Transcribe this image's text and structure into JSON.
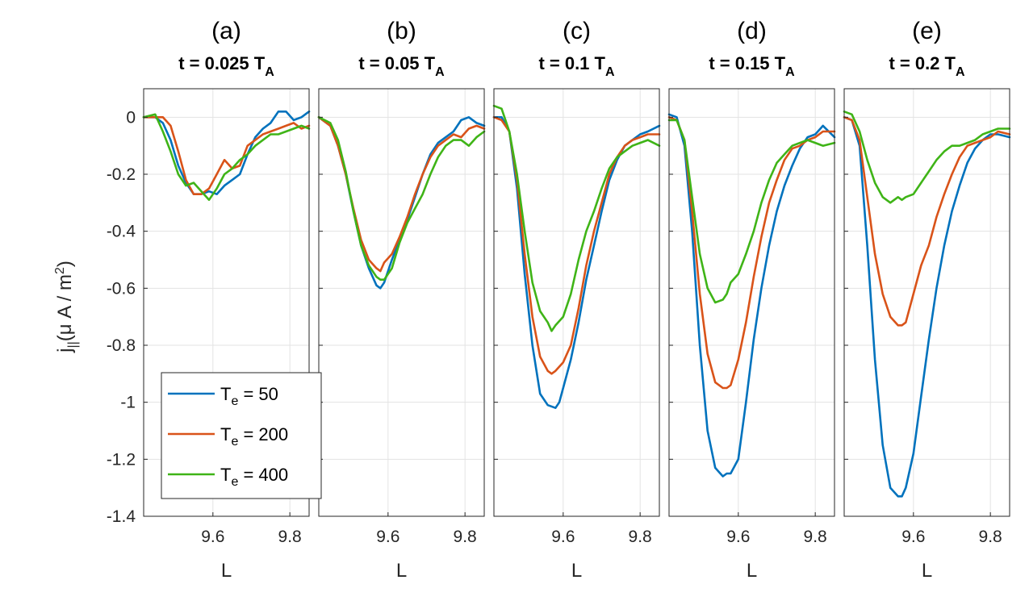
{
  "figure": {
    "y_axis_label": {
      "main": "j",
      "sub": "||",
      "rest": "(μ A / m",
      "sup": "2",
      "close": ")"
    },
    "legend": [
      {
        "prefix": "T",
        "sub": "e",
        "suffix": " = 50",
        "color": "#0072BD"
      },
      {
        "prefix": "T",
        "sub": "e",
        "suffix": " = 200",
        "color": "#D95319"
      },
      {
        "prefix": "T",
        "sub": "e",
        "suffix": " = 400",
        "color": "#3FB417"
      }
    ],
    "legend_location": "bottom-left of panel (a)"
  },
  "chart_data": [
    {
      "type": "line",
      "label": "(a)",
      "title": "t = 0.025 T",
      "title_sub": "A",
      "xlabel": "L",
      "ylabel": "j|| (μ A / m2)",
      "xlim": [
        9.42,
        9.85
      ],
      "ylim": [
        -1.4,
        0.1
      ],
      "xticks": [
        9.6,
        9.8
      ],
      "xtick_labels": [
        "9.6",
        "9.8"
      ],
      "yticks": [
        0,
        -0.2,
        -0.4,
        -0.6,
        -0.8,
        -1,
        -1.2,
        -1.4
      ],
      "ytick_labels": [
        "0",
        "-0.2",
        "-0.4",
        "-0.6",
        "-0.8",
        "-1",
        "-1.2",
        "-1.4"
      ],
      "grid": true,
      "series": [
        {
          "name": "T_e = 50",
          "color": "#0072BD",
          "x": [
            9.42,
            9.45,
            9.47,
            9.49,
            9.51,
            9.53,
            9.55,
            9.57,
            9.59,
            9.61,
            9.63,
            9.65,
            9.67,
            9.69,
            9.71,
            9.73,
            9.75,
            9.77,
            9.79,
            9.81,
            9.83,
            9.85
          ],
          "y": [
            0,
            0,
            -0.02,
            -0.08,
            -0.17,
            -0.23,
            -0.27,
            -0.27,
            -0.26,
            -0.27,
            -0.24,
            -0.22,
            -0.2,
            -0.13,
            -0.07,
            -0.04,
            -0.02,
            0.02,
            0.02,
            -0.01,
            0,
            0.02
          ]
        },
        {
          "name": "T_e = 200",
          "color": "#D95319",
          "x": [
            9.42,
            9.45,
            9.47,
            9.49,
            9.51,
            9.53,
            9.55,
            9.57,
            9.59,
            9.61,
            9.63,
            9.65,
            9.67,
            9.69,
            9.71,
            9.73,
            9.75,
            9.77,
            9.79,
            9.81,
            9.83,
            9.85
          ],
          "y": [
            0,
            0,
            0,
            -0.03,
            -0.12,
            -0.22,
            -0.27,
            -0.27,
            -0.25,
            -0.2,
            -0.15,
            -0.18,
            -0.17,
            -0.1,
            -0.08,
            -0.06,
            -0.05,
            -0.04,
            -0.03,
            -0.02,
            -0.04,
            -0.03
          ]
        },
        {
          "name": "T_e = 400",
          "color": "#3FB417",
          "x": [
            9.42,
            9.45,
            9.47,
            9.49,
            9.51,
            9.53,
            9.55,
            9.57,
            9.59,
            9.61,
            9.63,
            9.65,
            9.67,
            9.69,
            9.71,
            9.73,
            9.75,
            9.77,
            9.79,
            9.81,
            9.83,
            9.85
          ],
          "y": [
            0,
            0.01,
            -0.05,
            -0.12,
            -0.2,
            -0.24,
            -0.23,
            -0.26,
            -0.29,
            -0.25,
            -0.2,
            -0.18,
            -0.15,
            -0.13,
            -0.1,
            -0.08,
            -0.06,
            -0.06,
            -0.05,
            -0.04,
            -0.03,
            -0.04
          ]
        }
      ]
    },
    {
      "type": "line",
      "label": "(b)",
      "title": "t = 0.05 T",
      "title_sub": "A",
      "xlabel": "L",
      "xlim": [
        9.42,
        9.85
      ],
      "ylim": [
        -1.4,
        0.1
      ],
      "xticks": [
        9.6,
        9.8
      ],
      "xtick_labels": [
        "9.6",
        "9.8"
      ],
      "grid": true,
      "series": [
        {
          "name": "T_e = 50",
          "color": "#0072BD",
          "x": [
            9.42,
            9.45,
            9.47,
            9.49,
            9.51,
            9.53,
            9.55,
            9.57,
            9.58,
            9.59,
            9.61,
            9.63,
            9.65,
            9.67,
            9.69,
            9.71,
            9.73,
            9.75,
            9.77,
            9.79,
            9.81,
            9.83,
            9.85
          ],
          "y": [
            0,
            -0.03,
            -0.1,
            -0.2,
            -0.33,
            -0.45,
            -0.53,
            -0.59,
            -0.6,
            -0.58,
            -0.5,
            -0.43,
            -0.36,
            -0.28,
            -0.2,
            -0.13,
            -0.09,
            -0.07,
            -0.05,
            -0.01,
            0,
            -0.02,
            -0.03
          ]
        },
        {
          "name": "T_e = 200",
          "color": "#D95319",
          "x": [
            9.42,
            9.45,
            9.47,
            9.49,
            9.51,
            9.53,
            9.55,
            9.57,
            9.58,
            9.59,
            9.61,
            9.63,
            9.65,
            9.67,
            9.69,
            9.71,
            9.73,
            9.75,
            9.77,
            9.79,
            9.81,
            9.83,
            9.85
          ],
          "y": [
            0,
            -0.03,
            -0.1,
            -0.2,
            -0.32,
            -0.43,
            -0.5,
            -0.53,
            -0.54,
            -0.51,
            -0.48,
            -0.42,
            -0.35,
            -0.27,
            -0.2,
            -0.14,
            -0.1,
            -0.08,
            -0.06,
            -0.07,
            -0.04,
            -0.03,
            -0.04
          ]
        },
        {
          "name": "T_e = 400",
          "color": "#3FB417",
          "x": [
            9.42,
            9.45,
            9.47,
            9.49,
            9.51,
            9.53,
            9.55,
            9.57,
            9.58,
            9.59,
            9.61,
            9.63,
            9.65,
            9.67,
            9.69,
            9.71,
            9.73,
            9.75,
            9.77,
            9.79,
            9.81,
            9.83,
            9.85
          ],
          "y": [
            0,
            -0.02,
            -0.08,
            -0.19,
            -0.33,
            -0.45,
            -0.52,
            -0.56,
            -0.57,
            -0.57,
            -0.53,
            -0.44,
            -0.37,
            -0.32,
            -0.27,
            -0.2,
            -0.14,
            -0.1,
            -0.08,
            -0.08,
            -0.1,
            -0.07,
            -0.05
          ]
        }
      ]
    },
    {
      "type": "line",
      "label": "(c)",
      "title": "t = 0.1 T",
      "title_sub": "A",
      "xlabel": "L",
      "xlim": [
        9.42,
        9.85
      ],
      "ylim": [
        -1.4,
        0.1
      ],
      "xticks": [
        9.6,
        9.8
      ],
      "xtick_labels": [
        "9.6",
        "9.8"
      ],
      "grid": true,
      "series": [
        {
          "name": "T_e = 50",
          "color": "#0072BD",
          "x": [
            9.42,
            9.44,
            9.46,
            9.48,
            9.5,
            9.52,
            9.54,
            9.56,
            9.58,
            9.59,
            9.6,
            9.62,
            9.64,
            9.66,
            9.68,
            9.7,
            9.72,
            9.74,
            9.76,
            9.78,
            9.8,
            9.82,
            9.85
          ],
          "y": [
            0,
            0,
            -0.05,
            -0.25,
            -0.55,
            -0.8,
            -0.97,
            -1.01,
            -1.02,
            -1.0,
            -0.95,
            -0.85,
            -0.72,
            -0.57,
            -0.45,
            -0.33,
            -0.22,
            -0.15,
            -0.1,
            -0.08,
            -0.06,
            -0.05,
            -0.03
          ]
        },
        {
          "name": "T_e = 200",
          "color": "#D95319",
          "x": [
            9.42,
            9.44,
            9.46,
            9.48,
            9.5,
            9.52,
            9.54,
            9.56,
            9.57,
            9.58,
            9.6,
            9.62,
            9.64,
            9.66,
            9.68,
            9.7,
            9.72,
            9.74,
            9.76,
            9.78,
            9.8,
            9.82,
            9.85
          ],
          "y": [
            0,
            -0.01,
            -0.05,
            -0.22,
            -0.48,
            -0.7,
            -0.84,
            -0.89,
            -0.9,
            -0.89,
            -0.86,
            -0.8,
            -0.67,
            -0.52,
            -0.4,
            -0.3,
            -0.2,
            -0.14,
            -0.1,
            -0.08,
            -0.07,
            -0.06,
            -0.06
          ]
        },
        {
          "name": "T_e = 400",
          "color": "#3FB417",
          "x": [
            9.42,
            9.44,
            9.46,
            9.48,
            9.5,
            9.52,
            9.54,
            9.56,
            9.57,
            9.58,
            9.6,
            9.62,
            9.64,
            9.66,
            9.68,
            9.7,
            9.72,
            9.74,
            9.76,
            9.78,
            9.8,
            9.82,
            9.85
          ],
          "y": [
            0.04,
            0.03,
            -0.05,
            -0.2,
            -0.4,
            -0.58,
            -0.68,
            -0.72,
            -0.75,
            -0.73,
            -0.7,
            -0.62,
            -0.5,
            -0.4,
            -0.33,
            -0.25,
            -0.18,
            -0.14,
            -0.12,
            -0.1,
            -0.09,
            -0.08,
            -0.1
          ]
        }
      ]
    },
    {
      "type": "line",
      "label": "(d)",
      "title": "t = 0.15 T",
      "title_sub": "A",
      "xlabel": "L",
      "xlim": [
        9.42,
        9.85
      ],
      "ylim": [
        -1.4,
        0.1
      ],
      "xticks": [
        9.6,
        9.8
      ],
      "xtick_labels": [
        "9.6",
        "9.8"
      ],
      "grid": true,
      "series": [
        {
          "name": "T_e = 50",
          "color": "#0072BD",
          "x": [
            9.42,
            9.44,
            9.46,
            9.48,
            9.5,
            9.52,
            9.54,
            9.56,
            9.57,
            9.58,
            9.6,
            9.62,
            9.64,
            9.66,
            9.68,
            9.7,
            9.72,
            9.74,
            9.76,
            9.78,
            9.8,
            9.82,
            9.85
          ],
          "y": [
            0.01,
            0,
            -0.1,
            -0.4,
            -0.8,
            -1.1,
            -1.23,
            -1.26,
            -1.25,
            -1.25,
            -1.2,
            -1.0,
            -0.78,
            -0.6,
            -0.45,
            -0.33,
            -0.24,
            -0.17,
            -0.11,
            -0.07,
            -0.06,
            -0.03,
            -0.07
          ]
        },
        {
          "name": "T_e = 200",
          "color": "#D95319",
          "x": [
            9.42,
            9.44,
            9.46,
            9.48,
            9.5,
            9.52,
            9.54,
            9.56,
            9.57,
            9.58,
            9.6,
            9.62,
            9.64,
            9.66,
            9.68,
            9.7,
            9.72,
            9.74,
            9.76,
            9.78,
            9.8,
            9.82,
            9.85
          ],
          "y": [
            0,
            -0.01,
            -0.08,
            -0.33,
            -0.62,
            -0.83,
            -0.93,
            -0.95,
            -0.95,
            -0.94,
            -0.85,
            -0.72,
            -0.56,
            -0.42,
            -0.3,
            -0.22,
            -0.15,
            -0.11,
            -0.1,
            -0.08,
            -0.07,
            -0.05,
            -0.05
          ]
        },
        {
          "name": "T_e = 400",
          "color": "#3FB417",
          "x": [
            9.42,
            9.44,
            9.46,
            9.48,
            9.5,
            9.52,
            9.54,
            9.56,
            9.57,
            9.58,
            9.6,
            9.62,
            9.64,
            9.66,
            9.68,
            9.7,
            9.72,
            9.74,
            9.76,
            9.78,
            9.8,
            9.82,
            9.85
          ],
          "y": [
            -0.01,
            -0.01,
            -0.08,
            -0.28,
            -0.48,
            -0.6,
            -0.65,
            -0.64,
            -0.62,
            -0.58,
            -0.55,
            -0.48,
            -0.4,
            -0.3,
            -0.22,
            -0.16,
            -0.13,
            -0.1,
            -0.09,
            -0.08,
            -0.09,
            -0.1,
            -0.09
          ]
        }
      ]
    },
    {
      "type": "line",
      "label": "(e)",
      "title": "t = 0.2 T",
      "title_sub": "A",
      "xlabel": "L",
      "xlim": [
        9.42,
        9.85
      ],
      "ylim": [
        -1.4,
        0.1
      ],
      "xticks": [
        9.6,
        9.8
      ],
      "xtick_labels": [
        "9.6",
        "9.8"
      ],
      "grid": true,
      "series": [
        {
          "name": "T_e = 50",
          "color": "#0072BD",
          "x": [
            9.42,
            9.44,
            9.46,
            9.48,
            9.5,
            9.52,
            9.54,
            9.56,
            9.57,
            9.58,
            9.6,
            9.62,
            9.64,
            9.66,
            9.68,
            9.7,
            9.72,
            9.74,
            9.76,
            9.78,
            9.8,
            9.82,
            9.85
          ],
          "y": [
            0,
            -0.01,
            -0.1,
            -0.45,
            -0.85,
            -1.15,
            -1.3,
            -1.33,
            -1.33,
            -1.3,
            -1.18,
            -0.98,
            -0.78,
            -0.6,
            -0.45,
            -0.33,
            -0.24,
            -0.16,
            -0.11,
            -0.08,
            -0.06,
            -0.06,
            -0.07
          ]
        },
        {
          "name": "T_e = 200",
          "color": "#D95319",
          "x": [
            9.42,
            9.44,
            9.46,
            9.48,
            9.5,
            9.52,
            9.54,
            9.56,
            9.57,
            9.58,
            9.6,
            9.62,
            9.64,
            9.66,
            9.68,
            9.7,
            9.72,
            9.74,
            9.76,
            9.78,
            9.8,
            9.82,
            9.85
          ],
          "y": [
            0,
            -0.01,
            -0.08,
            -0.28,
            -0.48,
            -0.62,
            -0.7,
            -0.73,
            -0.73,
            -0.72,
            -0.62,
            -0.52,
            -0.45,
            -0.35,
            -0.27,
            -0.2,
            -0.14,
            -0.1,
            -0.09,
            -0.08,
            -0.07,
            -0.05,
            -0.06
          ]
        },
        {
          "name": "T_e = 400",
          "color": "#3FB417",
          "x": [
            9.42,
            9.44,
            9.46,
            9.48,
            9.5,
            9.52,
            9.54,
            9.56,
            9.57,
            9.58,
            9.6,
            9.62,
            9.64,
            9.66,
            9.68,
            9.7,
            9.72,
            9.74,
            9.76,
            9.78,
            9.8,
            9.82,
            9.85
          ],
          "y": [
            0.02,
            0.01,
            -0.05,
            -0.15,
            -0.23,
            -0.28,
            -0.3,
            -0.28,
            -0.29,
            -0.28,
            -0.27,
            -0.23,
            -0.19,
            -0.15,
            -0.12,
            -0.1,
            -0.1,
            -0.09,
            -0.08,
            -0.06,
            -0.05,
            -0.04,
            -0.04
          ]
        }
      ]
    }
  ]
}
